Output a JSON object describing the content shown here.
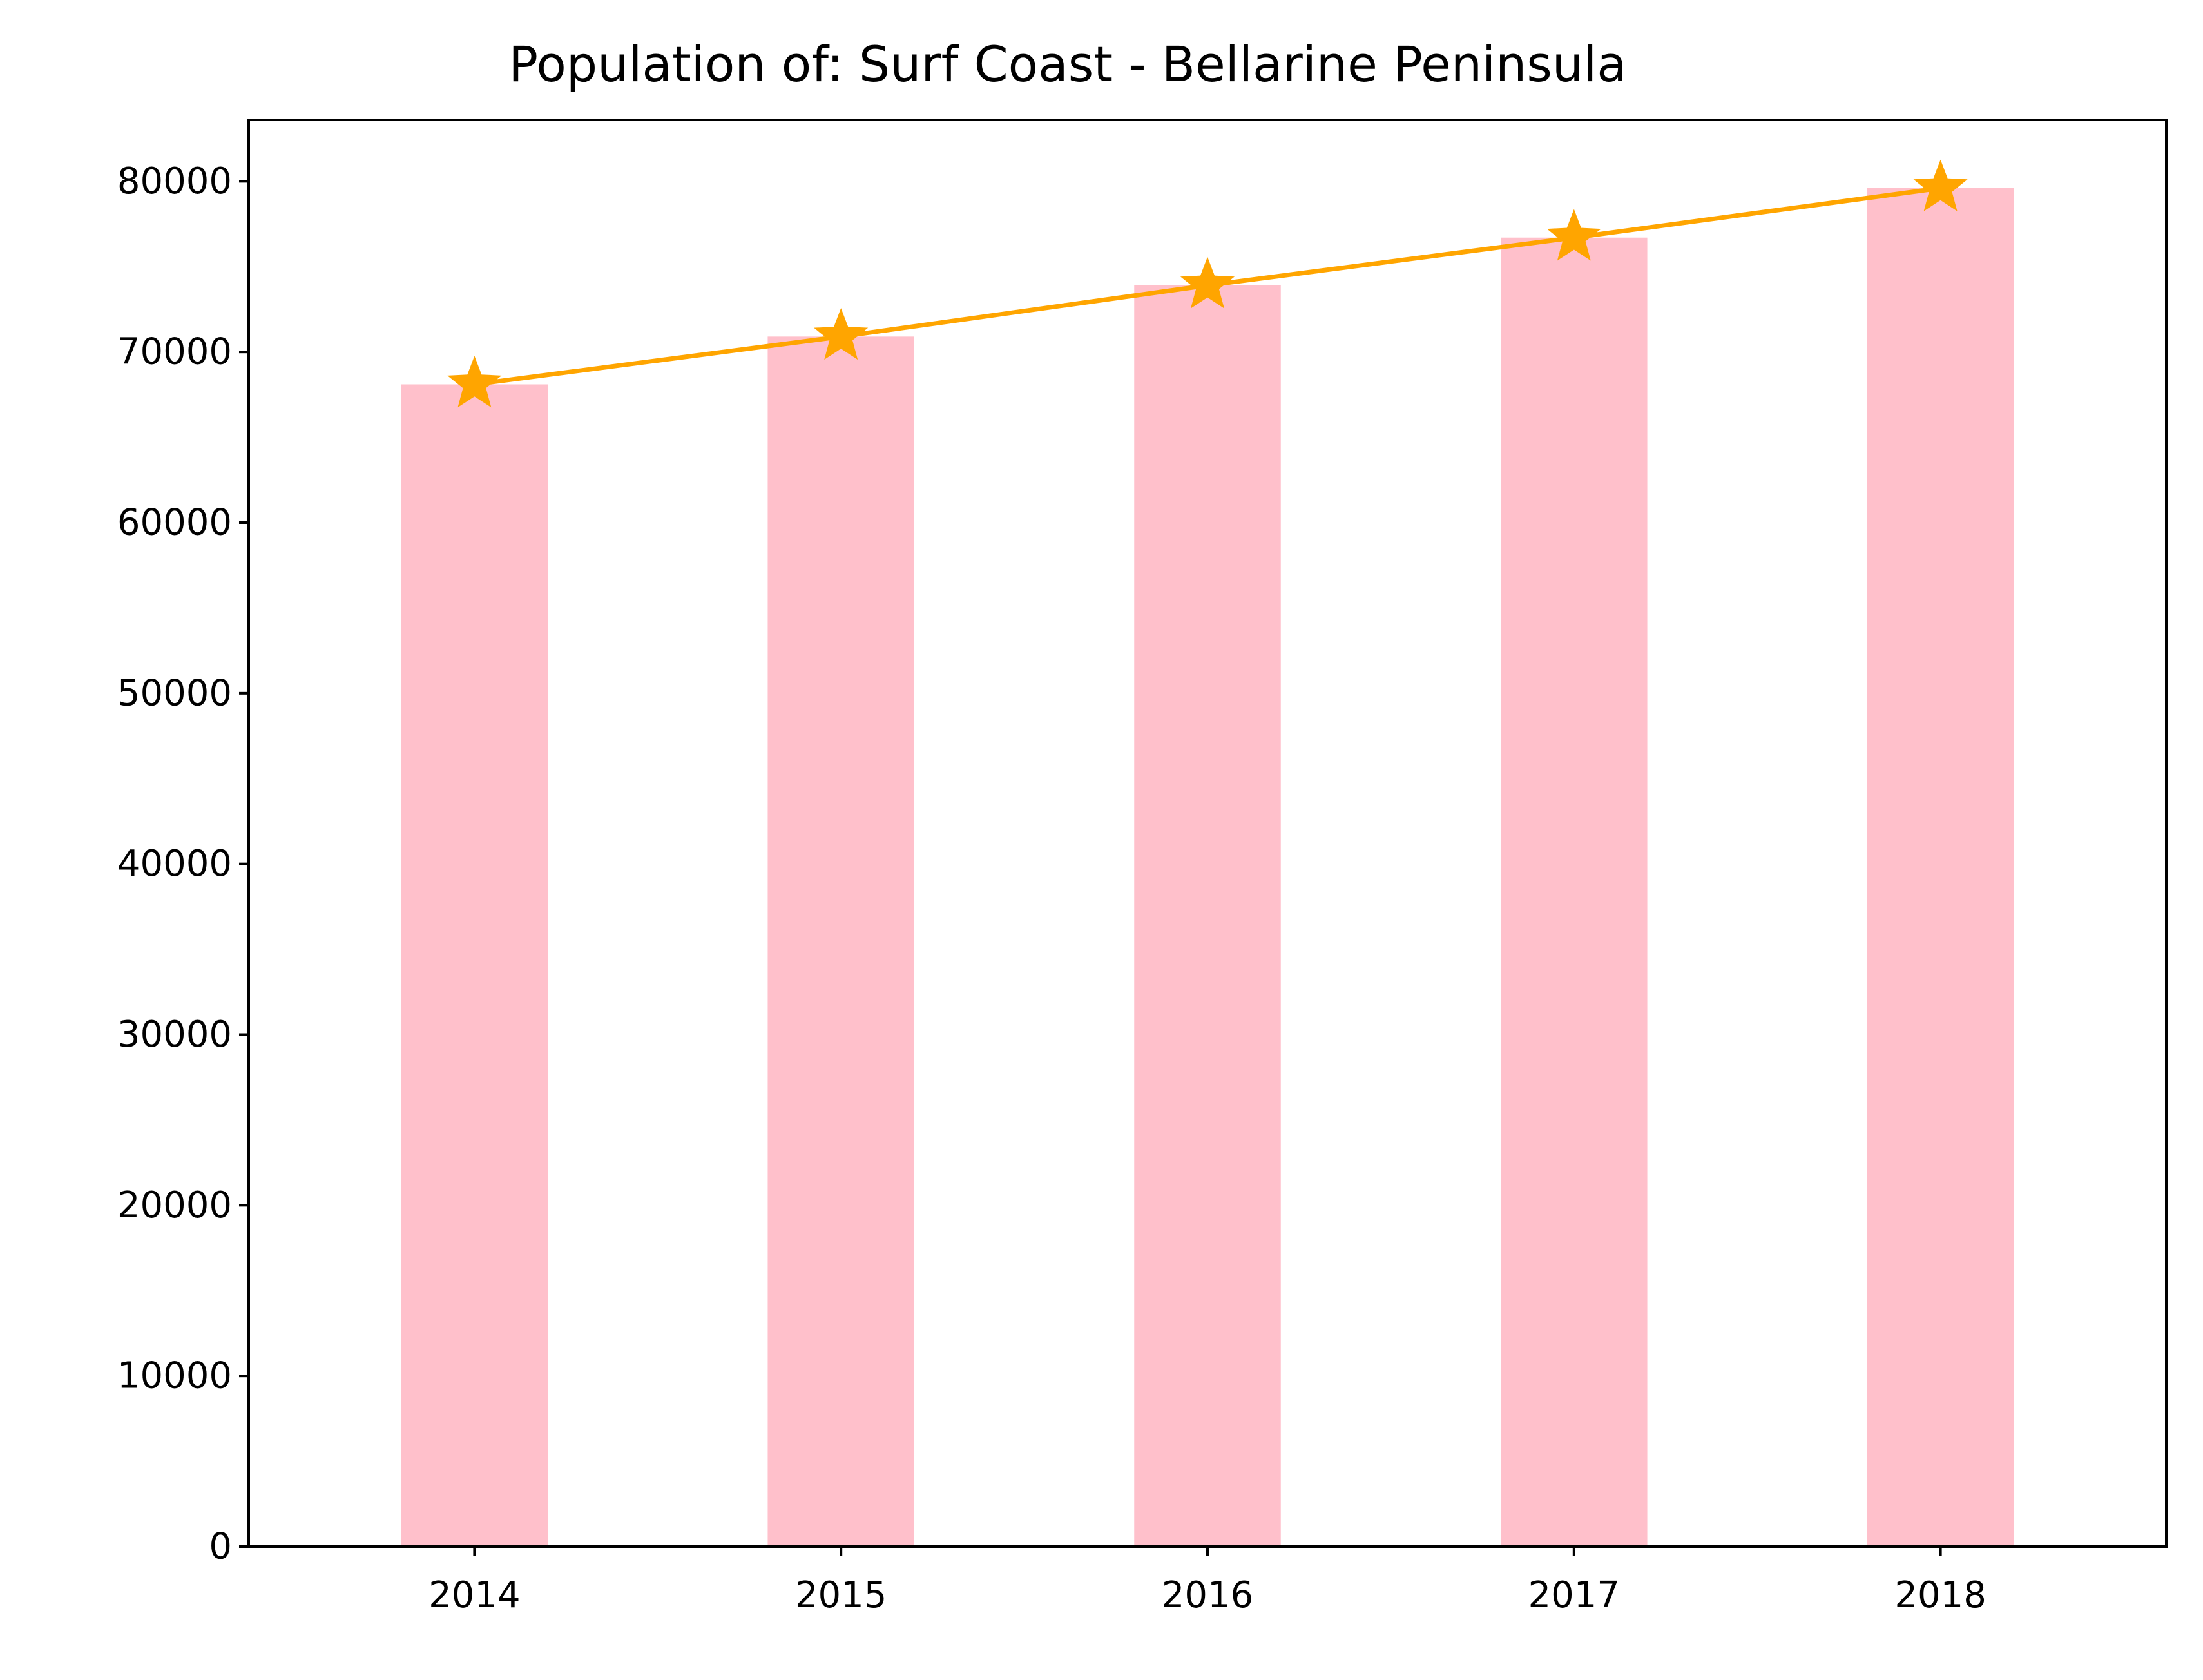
{
  "chart_data": {
    "type": "bar",
    "title": "Population of: Surf Coast - Bellarine Peninsula",
    "xlabel": "",
    "ylabel": "",
    "categories": [
      "2014",
      "2015",
      "2016",
      "2017",
      "2018"
    ],
    "series": [
      {
        "kind": "bar",
        "values": [
          68100,
          70900,
          73900,
          76700,
          79600
        ],
        "color": "#ffc0cb"
      },
      {
        "kind": "line",
        "marker": "star",
        "values": [
          68100,
          70900,
          73900,
          76700,
          79600
        ],
        "color": "#ffa500"
      }
    ],
    "ylim": [
      0,
      83600
    ],
    "yticks": [
      0,
      10000,
      20000,
      30000,
      40000,
      50000,
      60000,
      70000,
      80000
    ],
    "grid": false,
    "legend": "none"
  }
}
